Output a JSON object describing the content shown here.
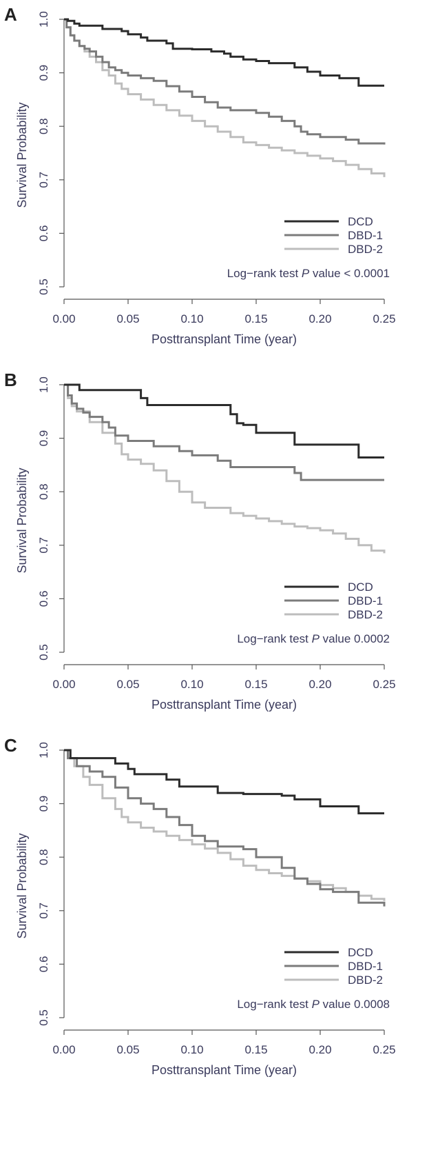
{
  "chart_data": [
    {
      "type": "line",
      "panel": "A",
      "xlabel": "Posttransplant Time (year)",
      "ylabel": "Survival Probability",
      "xlim": [
        0,
        0.25
      ],
      "ylim": [
        0.5,
        1.0
      ],
      "x_ticks": [
        "0.00",
        "0.05",
        "0.10",
        "0.15",
        "0.20",
        "0.25"
      ],
      "y_ticks": [
        "0.5",
        "0.6",
        "0.7",
        "0.8",
        "0.9",
        "1.0"
      ],
      "legend_position": "bottom-right",
      "grid": false,
      "series": [
        {
          "name": "DCD",
          "color": "#2b2b2b",
          "step": true,
          "x": [
            0,
            0.003,
            0.008,
            0.012,
            0.022,
            0.03,
            0.045,
            0.05,
            0.06,
            0.065,
            0.08,
            0.085,
            0.1,
            0.115,
            0.125,
            0.13,
            0.14,
            0.15,
            0.16,
            0.18,
            0.19,
            0.2,
            0.215,
            0.23,
            0.25
          ],
          "y": [
            1.0,
            0.997,
            0.992,
            0.988,
            0.988,
            0.982,
            0.978,
            0.972,
            0.966,
            0.96,
            0.955,
            0.945,
            0.944,
            0.94,
            0.936,
            0.93,
            0.925,
            0.922,
            0.918,
            0.91,
            0.902,
            0.895,
            0.89,
            0.876,
            0.876
          ]
        },
        {
          "name": "DBD-1",
          "color": "#7b7b7b",
          "step": true,
          "x": [
            0,
            0.002,
            0.005,
            0.008,
            0.012,
            0.016,
            0.02,
            0.025,
            0.03,
            0.035,
            0.04,
            0.045,
            0.05,
            0.06,
            0.07,
            0.08,
            0.09,
            0.1,
            0.11,
            0.12,
            0.13,
            0.15,
            0.16,
            0.17,
            0.18,
            0.185,
            0.19,
            0.2,
            0.22,
            0.23,
            0.25
          ],
          "y": [
            1.0,
            0.985,
            0.97,
            0.96,
            0.95,
            0.945,
            0.94,
            0.93,
            0.92,
            0.91,
            0.905,
            0.9,
            0.895,
            0.89,
            0.885,
            0.875,
            0.865,
            0.855,
            0.845,
            0.835,
            0.83,
            0.825,
            0.818,
            0.81,
            0.8,
            0.79,
            0.785,
            0.78,
            0.775,
            0.768,
            0.766
          ]
        },
        {
          "name": "DBD-2",
          "color": "#bdbdbd",
          "step": true,
          "x": [
            0,
            0.002,
            0.005,
            0.008,
            0.012,
            0.016,
            0.02,
            0.025,
            0.03,
            0.035,
            0.04,
            0.045,
            0.05,
            0.06,
            0.07,
            0.08,
            0.09,
            0.1,
            0.11,
            0.12,
            0.13,
            0.14,
            0.15,
            0.16,
            0.17,
            0.18,
            0.19,
            0.2,
            0.21,
            0.22,
            0.23,
            0.24,
            0.25
          ],
          "y": [
            1.0,
            0.985,
            0.97,
            0.96,
            0.95,
            0.94,
            0.93,
            0.92,
            0.905,
            0.895,
            0.88,
            0.87,
            0.86,
            0.85,
            0.84,
            0.83,
            0.82,
            0.81,
            0.8,
            0.79,
            0.78,
            0.77,
            0.765,
            0.76,
            0.755,
            0.75,
            0.745,
            0.74,
            0.735,
            0.728,
            0.72,
            0.712,
            0.705
          ]
        }
      ],
      "annotation": {
        "label": "Log−rank test",
        "p_label": "P",
        "p_word": "value",
        "p_value": "< 0.0001"
      }
    },
    {
      "type": "line",
      "panel": "B",
      "xlabel": "Posttransplant Time (year)",
      "ylabel": "Survival Probability",
      "xlim": [
        0,
        0.25
      ],
      "ylim": [
        0.5,
        1.0
      ],
      "x_ticks": [
        "0.00",
        "0.05",
        "0.10",
        "0.15",
        "0.20",
        "0.25"
      ],
      "y_ticks": [
        "0.5",
        "0.6",
        "0.7",
        "0.8",
        "0.9",
        "1.0"
      ],
      "legend_position": "bottom-right",
      "grid": false,
      "series": [
        {
          "name": "DCD",
          "color": "#2b2b2b",
          "step": true,
          "x": [
            0,
            0.012,
            0.06,
            0.065,
            0.13,
            0.135,
            0.14,
            0.15,
            0.18,
            0.23,
            0.25
          ],
          "y": [
            1.0,
            0.99,
            0.975,
            0.962,
            0.945,
            0.928,
            0.925,
            0.91,
            0.888,
            0.864,
            0.864
          ]
        },
        {
          "name": "DBD-1",
          "color": "#7b7b7b",
          "step": true,
          "x": [
            0,
            0.003,
            0.006,
            0.01,
            0.015,
            0.02,
            0.03,
            0.035,
            0.04,
            0.05,
            0.07,
            0.09,
            0.1,
            0.12,
            0.13,
            0.18,
            0.185,
            0.25
          ],
          "y": [
            1.0,
            0.98,
            0.965,
            0.955,
            0.948,
            0.94,
            0.93,
            0.92,
            0.905,
            0.895,
            0.885,
            0.876,
            0.868,
            0.858,
            0.846,
            0.835,
            0.822,
            0.822
          ]
        },
        {
          "name": "DBD-2",
          "color": "#bdbdbd",
          "step": true,
          "x": [
            0,
            0.003,
            0.006,
            0.01,
            0.02,
            0.03,
            0.04,
            0.045,
            0.05,
            0.06,
            0.07,
            0.08,
            0.09,
            0.1,
            0.11,
            0.13,
            0.14,
            0.15,
            0.16,
            0.17,
            0.18,
            0.19,
            0.2,
            0.21,
            0.22,
            0.23,
            0.24,
            0.25
          ],
          "y": [
            1.0,
            0.975,
            0.96,
            0.95,
            0.93,
            0.91,
            0.89,
            0.87,
            0.86,
            0.852,
            0.84,
            0.82,
            0.8,
            0.78,
            0.77,
            0.76,
            0.755,
            0.75,
            0.745,
            0.74,
            0.735,
            0.732,
            0.728,
            0.722,
            0.712,
            0.7,
            0.69,
            0.685
          ]
        }
      ],
      "annotation": {
        "label": "Log−rank test",
        "p_label": "P",
        "p_word": "value",
        "p_value": "0.0002"
      }
    },
    {
      "type": "line",
      "panel": "C",
      "xlabel": "Posttransplant Time (year)",
      "ylabel": "Survival Probability",
      "xlim": [
        0,
        0.25
      ],
      "ylim": [
        0.5,
        1.0
      ],
      "x_ticks": [
        "0.00",
        "0.05",
        "0.10",
        "0.15",
        "0.20",
        "0.25"
      ],
      "y_ticks": [
        "0.5",
        "0.6",
        "0.7",
        "0.8",
        "0.9",
        "1.0"
      ],
      "legend_position": "bottom-right",
      "grid": false,
      "series": [
        {
          "name": "DCD",
          "color": "#2b2b2b",
          "step": true,
          "x": [
            0,
            0.005,
            0.04,
            0.05,
            0.055,
            0.08,
            0.09,
            0.12,
            0.14,
            0.17,
            0.18,
            0.2,
            0.23,
            0.25
          ],
          "y": [
            1.0,
            0.985,
            0.975,
            0.965,
            0.955,
            0.945,
            0.932,
            0.92,
            0.918,
            0.915,
            0.908,
            0.895,
            0.882,
            0.882
          ]
        },
        {
          "name": "DBD-1",
          "color": "#7b7b7b",
          "step": true,
          "x": [
            0,
            0.003,
            0.01,
            0.02,
            0.03,
            0.04,
            0.05,
            0.06,
            0.07,
            0.08,
            0.09,
            0.1,
            0.11,
            0.12,
            0.14,
            0.15,
            0.17,
            0.18,
            0.19,
            0.2,
            0.21,
            0.23,
            0.25
          ],
          "y": [
            1.0,
            0.985,
            0.97,
            0.96,
            0.95,
            0.93,
            0.91,
            0.9,
            0.89,
            0.875,
            0.86,
            0.84,
            0.83,
            0.82,
            0.815,
            0.8,
            0.78,
            0.76,
            0.75,
            0.74,
            0.735,
            0.715,
            0.708
          ]
        },
        {
          "name": "DBD-2",
          "color": "#bdbdbd",
          "step": true,
          "x": [
            0,
            0.003,
            0.008,
            0.015,
            0.02,
            0.03,
            0.04,
            0.045,
            0.05,
            0.06,
            0.07,
            0.08,
            0.09,
            0.1,
            0.11,
            0.12,
            0.13,
            0.14,
            0.15,
            0.16,
            0.17,
            0.18,
            0.19,
            0.2,
            0.21,
            0.22,
            0.23,
            0.24,
            0.25
          ],
          "y": [
            1.0,
            0.985,
            0.97,
            0.95,
            0.935,
            0.91,
            0.89,
            0.875,
            0.865,
            0.855,
            0.848,
            0.84,
            0.832,
            0.824,
            0.816,
            0.808,
            0.796,
            0.784,
            0.776,
            0.77,
            0.765,
            0.76,
            0.755,
            0.748,
            0.742,
            0.735,
            0.728,
            0.722,
            0.718
          ]
        }
      ],
      "annotation": {
        "label": "Log−rank test",
        "p_label": "P",
        "p_word": "value",
        "p_value": "0.0008"
      }
    }
  ]
}
